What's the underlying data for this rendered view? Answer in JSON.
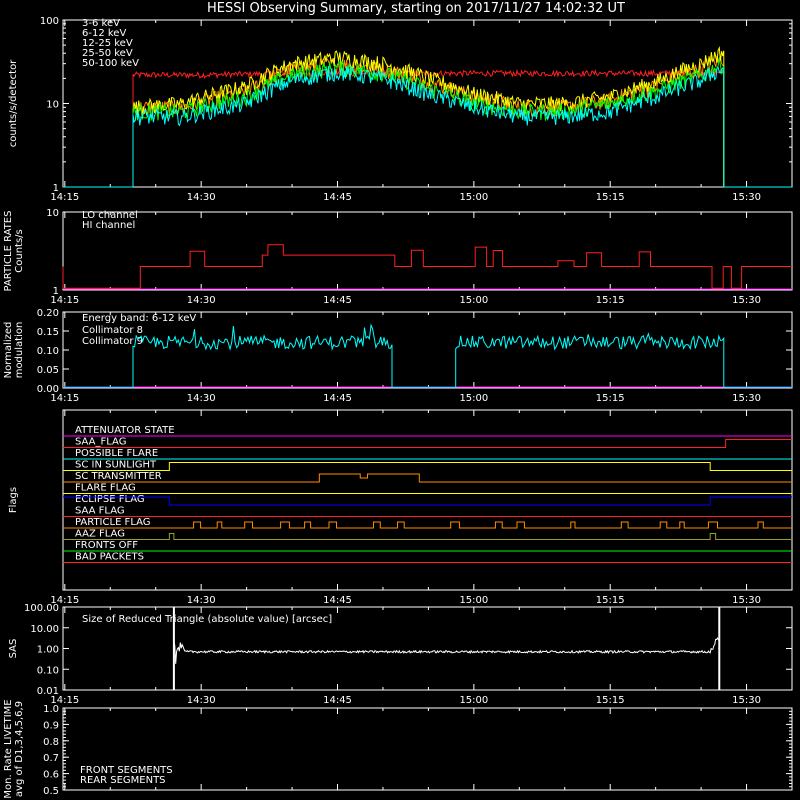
{
  "title": "HESSI Observing Summary, starting on 2017/11/27 14:02:32 UT",
  "time_ticks": [
    "14:15",
    "14:30",
    "14:45",
    "15:00",
    "15:15",
    "15:30"
  ],
  "colors": {
    "axis": "#ffffff",
    "red": "#ff2020",
    "orange": "#ff8c00",
    "yellow": "#ffff00",
    "green": "#00ff00",
    "cyan": "#00ffff",
    "magenta": "#ff00ff",
    "blue": "#0000ff",
    "lime": "#00ff00",
    "olive": "#9aa020",
    "white": "#ffffff"
  },
  "chart_data": [
    {
      "type": "line",
      "panel": "count-rates",
      "ylabel": "counts/s/detector",
      "yscale": "log",
      "ylim": [
        1,
        100
      ],
      "yticks": [
        "1",
        "10",
        "100"
      ],
      "xlim_minutes": [
        14.8,
        95
      ],
      "data_span_minutes": [
        22.5,
        87.5
      ],
      "legend_placement": "top-left",
      "series": [
        {
          "name": "3-6 keV",
          "color": "red",
          "x": [
            22.5,
            30,
            40,
            50,
            60,
            70,
            80,
            87.5
          ],
          "values": [
            22,
            22,
            23,
            23,
            23,
            23,
            23,
            24
          ]
        },
        {
          "name": "6-12 keV",
          "color": "orange",
          "x": [
            22.5,
            28,
            35,
            40,
            45,
            50,
            55,
            60,
            65,
            70,
            75,
            80,
            85,
            87.5
          ],
          "values": [
            9,
            9,
            14,
            26,
            30,
            26,
            18,
            12,
            9,
            9,
            11,
            16,
            26,
            35
          ]
        },
        {
          "name": "12-25 keV",
          "color": "yellow",
          "x": [
            22.5,
            28,
            35,
            40,
            45,
            50,
            55,
            60,
            65,
            70,
            75,
            80,
            85,
            87.5
          ],
          "values": [
            9,
            10,
            16,
            30,
            36,
            30,
            20,
            13,
            10,
            10,
            12,
            18,
            30,
            42
          ]
        },
        {
          "name": "25-50 keV",
          "color": "green",
          "x": [
            22.5,
            28,
            35,
            40,
            45,
            50,
            55,
            60,
            65,
            70,
            75,
            80,
            85,
            87.5
          ],
          "values": [
            8,
            8,
            12,
            22,
            27,
            23,
            15,
            10,
            8,
            8,
            10,
            14,
            22,
            30
          ]
        },
        {
          "name": "50-100 keV",
          "color": "cyan",
          "x": [
            22.5,
            28,
            35,
            40,
            45,
            50,
            55,
            60,
            65,
            70,
            75,
            80,
            85,
            87.5
          ],
          "values": [
            7,
            7,
            10,
            19,
            24,
            20,
            13,
            9,
            7,
            7,
            8,
            12,
            19,
            27
          ]
        }
      ]
    },
    {
      "type": "line",
      "panel": "particle-rates",
      "ylabel": "PARTICLE RATES\nCounts/s",
      "yscale": "log",
      "ylim": [
        1,
        10
      ],
      "yticks": [
        "1",
        "10"
      ],
      "legend_placement": "top-left",
      "series": [
        {
          "name": "LO channel",
          "color": "red"
        },
        {
          "name": "HI channel",
          "color": "red",
          "baseline": 1.2,
          "level": 2,
          "peak": 5
        }
      ]
    },
    {
      "type": "line",
      "panel": "modulation",
      "ylabel": "Normalized\nmodulation",
      "ylim": [
        0,
        0.2
      ],
      "yticks": [
        "0.00",
        "0.05",
        "0.10",
        "0.15",
        "0.20"
      ],
      "annotation": "Energy band: 6-12 keV",
      "legend_placement": "top-left",
      "series": [
        {
          "name": "Collimator 8",
          "color": "cyan",
          "segments": [
            [
              22.5,
              51
            ],
            [
              58,
              87.5
            ]
          ],
          "level": 0.12
        },
        {
          "name": "Collimator 9",
          "color": "magenta",
          "level": 0.0
        }
      ]
    },
    {
      "type": "line",
      "panel": "flags",
      "ylabel": "Flags",
      "flags": [
        {
          "name": "ATTENUATOR STATE",
          "color": "magenta"
        },
        {
          "name": "SAA_FLAG",
          "color": "red"
        },
        {
          "name": "POSSIBLE FLARE",
          "color": "cyan"
        },
        {
          "name": "SC IN SUNLIGHT",
          "color": "yellow"
        },
        {
          "name": "SC TRANSMITTER",
          "color": "orange"
        },
        {
          "name": "FLARE FLAG",
          "color": "yellow"
        },
        {
          "name": "ECLIPSE FLAG",
          "color": "blue"
        },
        {
          "name": "SAA FLAG",
          "color": "red"
        },
        {
          "name": "PARTICLE FLAG",
          "color": "orange"
        },
        {
          "name": "AAZ FLAG",
          "color": "olive"
        },
        {
          "name": "FRONTS OFF",
          "color": "lime"
        },
        {
          "name": "BAD PACKETS",
          "color": "red"
        }
      ]
    },
    {
      "type": "line",
      "panel": "sas",
      "ylabel": "SAS",
      "yscale": "log",
      "ylim": [
        0.01,
        100
      ],
      "yticks": [
        "0.01",
        "0.10",
        "1.00",
        "10.00",
        "100.00"
      ],
      "annotation": "Size of Reduced Triangle (absolute value) [arcsec]",
      "series": [
        {
          "color": "white",
          "span_minutes": [
            27,
            87
          ],
          "level": 0.7,
          "spike": 100
        }
      ]
    },
    {
      "type": "line",
      "panel": "livetime",
      "ylabel": "Mon. Rate LIVETIME\navg of D1,3,4,5,6,9",
      "ylim": [
        0.5,
        1.0
      ],
      "yticks": [
        "0.5",
        "0.6",
        "0.7",
        "0.8",
        "0.9",
        "1.0"
      ],
      "legend_placement": "bottom-left",
      "series": [
        {
          "name": "FRONT SEGMENTS",
          "color": "lime"
        },
        {
          "name": "REAR SEGMENTS",
          "color": "#3a9a3a"
        }
      ]
    }
  ]
}
